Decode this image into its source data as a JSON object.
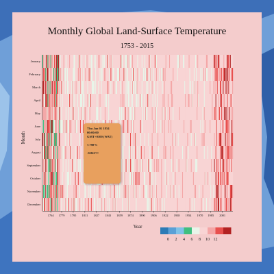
{
  "page": {
    "title": "Monthly Global Land-Surface Temperature",
    "subtitle": "1753 - 2015"
  },
  "tooltip": {
    "date": "Thu Jan 01 1854",
    "time": "00:00:00",
    "zone": "GMT+0100 (WAT)",
    "temperature": "7.798°C",
    "variance": "-0.862°C"
  },
  "colors": {
    "background_map": "#5f8fcf",
    "panel": "#f4cccc",
    "tooltip": "#e8a05e",
    "scale": [
      "#2c7bb6",
      "#5aa0d6",
      "#7fc2e8",
      "#3fbf7f",
      "#e8f5e9",
      "#f8d4d4",
      "#f4a6a6",
      "#e8504e",
      "#b22222"
    ]
  },
  "chart_data": {
    "type": "heatmap",
    "title": "Monthly Global Land-Surface Temperature",
    "subtitle": "1753 - 2015",
    "xlabel": "Year",
    "ylabel": "Month",
    "x_range": [
      1753,
      2015
    ],
    "x_ticks": [
      "1764",
      "1779",
      "1795",
      "1811",
      "1827",
      "1843",
      "1859",
      "1874",
      "1890",
      "1906",
      "1922",
      "1938",
      "1954",
      "1970",
      "1985",
      "2001"
    ],
    "y_categories": [
      "January",
      "February",
      "March",
      "April",
      "May",
      "June",
      "July",
      "August",
      "September",
      "October",
      "November",
      "December"
    ],
    "legend": {
      "position": "bottom-right",
      "labels": [
        "0",
        "2",
        "4",
        "6",
        "8",
        "10",
        "12"
      ]
    },
    "color_scale": [
      "#2c7bb6",
      "#5aa0d6",
      "#7fc2e8",
      "#3fbf7f",
      "#e8f5e9",
      "#f8d4d4",
      "#f4a6a6",
      "#e8504e",
      "#b22222"
    ]
  }
}
